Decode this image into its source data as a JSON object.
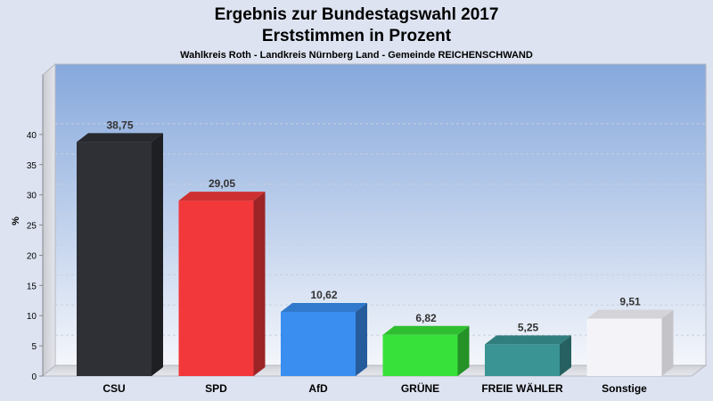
{
  "chart_data": {
    "type": "bar",
    "title": "Ergebnis zur Bundestagswahl 2017",
    "subtitle": "Erststimmen in Prozent",
    "caption": "Wahlkreis Roth - Landkreis Nürnberg Land - Gemeinde REICHENSCHWAND",
    "xlabel": "",
    "ylabel": "%",
    "ylim": [
      0,
      45
    ],
    "yticks": [
      0,
      5,
      10,
      15,
      20,
      25,
      30,
      35,
      40
    ],
    "grid": true,
    "categories": [
      "CSU",
      "SPD",
      "AfD",
      "GRÜNE",
      "FREIE WÄHLER",
      "Sonstige"
    ],
    "values": [
      38.75,
      29.05,
      10.62,
      6.82,
      5.25,
      9.51
    ],
    "value_labels": [
      "38,75",
      "29,05",
      "10,62",
      "6,82",
      "5,25",
      "9,51"
    ],
    "colors": [
      "#2e3036",
      "#f2383a",
      "#3a8ef0",
      "#38e03a",
      "#3a9494",
      "#f4f4f8"
    ]
  }
}
